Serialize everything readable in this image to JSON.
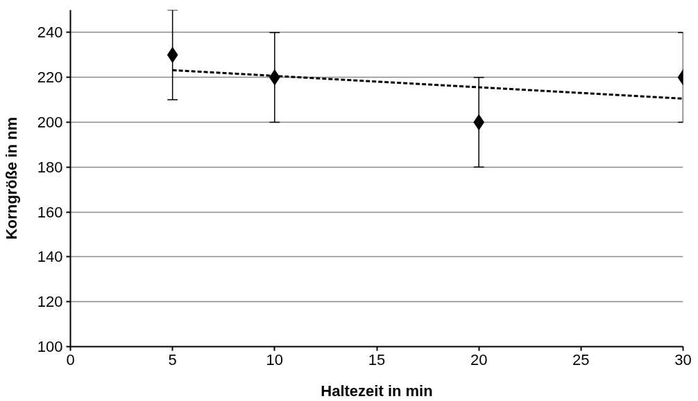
{
  "chart_data": {
    "type": "scatter",
    "xlabel": "Haltezeit in min",
    "ylabel": "Korngröße in nm",
    "xlim": [
      0,
      30
    ],
    "xticks": [
      0,
      5,
      10,
      15,
      20,
      25,
      30
    ],
    "ylim": [
      100,
      250
    ],
    "yticks": [
      100,
      120,
      140,
      160,
      180,
      200,
      220,
      240
    ],
    "grid": "y",
    "series": [
      {
        "marker": "diamond",
        "color": "#000000",
        "x": [
          5,
          10,
          20,
          30
        ],
        "values": [
          230,
          220,
          200,
          220
        ],
        "errors": [
          20,
          20,
          20,
          20
        ]
      },
      {
        "type": "line",
        "marker": "none",
        "color": "#000000",
        "line_style": "dashed",
        "x": [
          5,
          30
        ],
        "values": [
          223.2,
          210.5
        ]
      }
    ]
  }
}
